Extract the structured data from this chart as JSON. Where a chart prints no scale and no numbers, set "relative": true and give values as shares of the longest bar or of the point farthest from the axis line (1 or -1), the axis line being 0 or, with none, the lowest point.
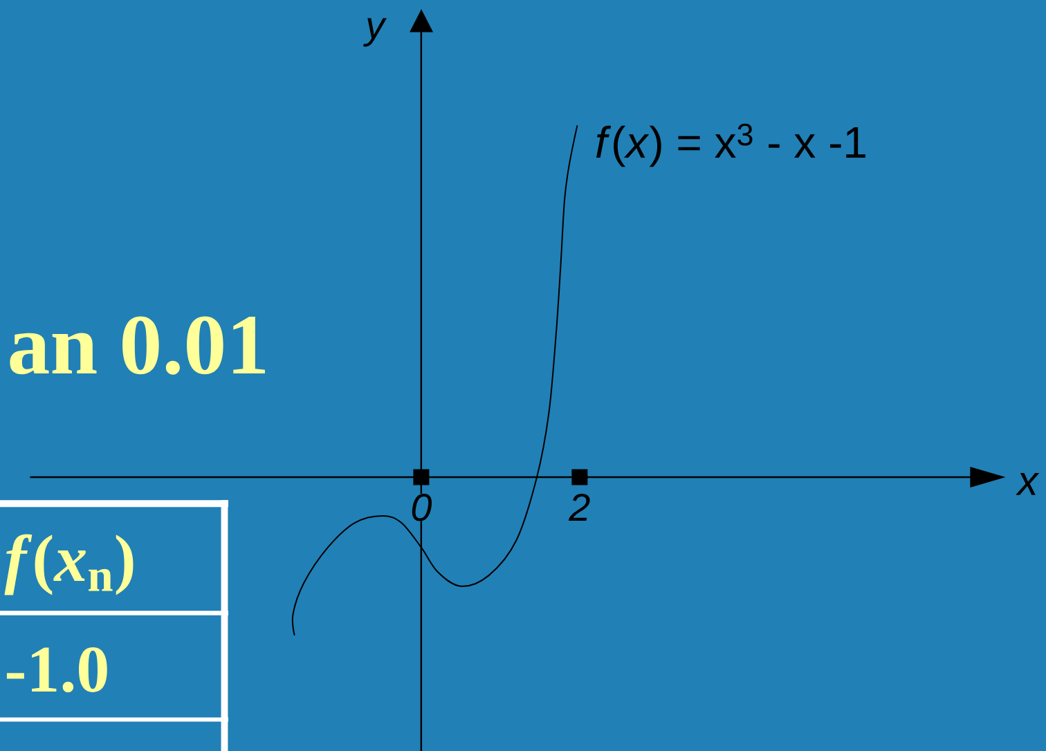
{
  "chart_data": {
    "type": "line",
    "xlabel": "x",
    "ylabel": "y",
    "relative": true,
    "xlim": [
      -4.94,
      6.94
    ],
    "xticks": [
      0,
      2
    ],
    "series": [
      {
        "name": "*f*(*x*) = x$^{3}$ - x -1",
        "color": "#000000",
        "x": [
          -1.6,
          -1.62,
          -1.48,
          -1.18,
          -0.84,
          -0.49,
          -0.25,
          0.0,
          0.21,
          0.5,
          0.85,
          1.2,
          1.46,
          1.61,
          1.7,
          1.76,
          1.81,
          1.87,
          1.97
        ],
        "values": [
          -0.45,
          -0.39,
          -0.3,
          -0.2,
          -0.13,
          -0.11,
          -0.13,
          -0.2,
          -0.27,
          -0.31,
          -0.28,
          -0.18,
          0,
          0.18,
          0.4,
          0.6,
          0.79,
          0.89,
          1
        ]
      }
    ],
    "annotations": [
      "an 0.01",
      "*f*(*x*$_{n}$)",
      "-1.0"
    ]
  }
}
